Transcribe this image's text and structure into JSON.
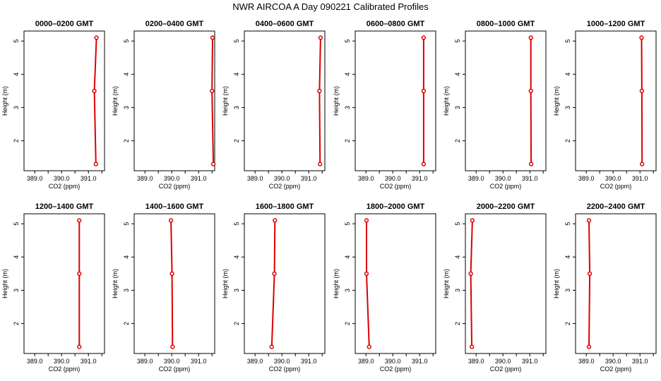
{
  "title": "NWR AIRCOA A  Day 090221  Calibrated Profiles",
  "colors": {
    "series": "#dd0000",
    "axis": "#000000",
    "background": "#ffffff"
  },
  "chart_data": [
    {
      "type": "line",
      "title": "0000–0200 GMT",
      "xlabel": "CO2 (ppm)",
      "ylabel": "Height (m)",
      "xlim": [
        388.6,
        391.6
      ],
      "ylim": [
        1.1,
        5.3
      ],
      "xticks": [
        "389.0",
        "390.0",
        "391.0"
      ],
      "yticks": [
        "2",
        "3",
        "4",
        "5"
      ],
      "points": [
        {
          "x": 391.28,
          "y": 1.3
        },
        {
          "x": 391.22,
          "y": 3.5
        },
        {
          "x": 391.3,
          "y": 5.1
        }
      ]
    },
    {
      "type": "line",
      "title": "0200–0400 GMT",
      "xlabel": "CO2 (ppm)",
      "ylabel": "Height (m)",
      "xlim": [
        388.6,
        391.6
      ],
      "ylim": [
        1.1,
        5.3
      ],
      "xticks": [
        "389.0",
        "390.0",
        "391.0"
      ],
      "yticks": [
        "2",
        "3",
        "4",
        "5"
      ],
      "points": [
        {
          "x": 391.55,
          "y": 1.3
        },
        {
          "x": 391.5,
          "y": 3.5
        },
        {
          "x": 391.52,
          "y": 5.1
        }
      ]
    },
    {
      "type": "line",
      "title": "0400–0600 GMT",
      "xlabel": "CO2 (ppm)",
      "ylabel": "Height (m)",
      "xlim": [
        388.6,
        391.6
      ],
      "ylim": [
        1.1,
        5.3
      ],
      "xticks": [
        "389.0",
        "390.0",
        "391.0"
      ],
      "yticks": [
        "2",
        "3",
        "4",
        "5"
      ],
      "points": [
        {
          "x": 391.42,
          "y": 1.3
        },
        {
          "x": 391.4,
          "y": 3.5
        },
        {
          "x": 391.44,
          "y": 5.1
        }
      ]
    },
    {
      "type": "line",
      "title": "0600–0800 GMT",
      "xlabel": "CO2 (ppm)",
      "ylabel": "Height (m)",
      "xlim": [
        388.6,
        391.6
      ],
      "ylim": [
        1.1,
        5.3
      ],
      "xticks": [
        "389.0",
        "390.0",
        "391.0"
      ],
      "yticks": [
        "2",
        "3",
        "4",
        "5"
      ],
      "points": [
        {
          "x": 391.15,
          "y": 1.3
        },
        {
          "x": 391.15,
          "y": 3.5
        },
        {
          "x": 391.15,
          "y": 5.1
        }
      ]
    },
    {
      "type": "line",
      "title": "0800–1000 GMT",
      "xlabel": "CO2 (ppm)",
      "ylabel": "Height (m)",
      "xlim": [
        388.6,
        391.6
      ],
      "ylim": [
        1.1,
        5.3
      ],
      "xticks": [
        "389.0",
        "390.0",
        "391.0"
      ],
      "yticks": [
        "2",
        "3",
        "4",
        "5"
      ],
      "points": [
        {
          "x": 391.05,
          "y": 1.3
        },
        {
          "x": 391.04,
          "y": 3.5
        },
        {
          "x": 391.04,
          "y": 5.1
        }
      ]
    },
    {
      "type": "line",
      "title": "1000–1200 GMT",
      "xlabel": "CO2 (ppm)",
      "ylabel": "Height (m)",
      "xlim": [
        388.6,
        391.6
      ],
      "ylim": [
        1.1,
        5.3
      ],
      "xticks": [
        "389.0",
        "390.0",
        "391.0"
      ],
      "yticks": [
        "2",
        "3",
        "4",
        "5"
      ],
      "points": [
        {
          "x": 391.08,
          "y": 1.3
        },
        {
          "x": 391.07,
          "y": 3.5
        },
        {
          "x": 391.06,
          "y": 5.1
        }
      ]
    },
    {
      "type": "line",
      "title": "1200–1400 GMT",
      "xlabel": "CO2 (ppm)",
      "ylabel": "Height (m)",
      "xlim": [
        388.6,
        391.6
      ],
      "ylim": [
        1.1,
        5.3
      ],
      "xticks": [
        "389.0",
        "390.0",
        "391.0"
      ],
      "yticks": [
        "2",
        "3",
        "4",
        "5"
      ],
      "points": [
        {
          "x": 390.66,
          "y": 1.3
        },
        {
          "x": 390.66,
          "y": 3.5
        },
        {
          "x": 390.66,
          "y": 5.1
        }
      ]
    },
    {
      "type": "line",
      "title": "1400–1600 GMT",
      "xlabel": "CO2 (ppm)",
      "ylabel": "Height (m)",
      "xlim": [
        388.6,
        391.6
      ],
      "ylim": [
        1.1,
        5.3
      ],
      "xticks": [
        "389.0",
        "390.0",
        "391.0"
      ],
      "yticks": [
        "2",
        "3",
        "4",
        "5"
      ],
      "points": [
        {
          "x": 390.03,
          "y": 1.3
        },
        {
          "x": 390.01,
          "y": 3.5
        },
        {
          "x": 389.97,
          "y": 5.1
        }
      ]
    },
    {
      "type": "line",
      "title": "1600–1800 GMT",
      "xlabel": "CO2 (ppm)",
      "ylabel": "Height (m)",
      "xlim": [
        388.6,
        391.6
      ],
      "ylim": [
        1.1,
        5.3
      ],
      "xticks": [
        "389.0",
        "390.0",
        "391.0"
      ],
      "yticks": [
        "2",
        "3",
        "4",
        "5"
      ],
      "points": [
        {
          "x": 389.62,
          "y": 1.3
        },
        {
          "x": 389.72,
          "y": 3.5
        },
        {
          "x": 389.74,
          "y": 5.1
        }
      ]
    },
    {
      "type": "line",
      "title": "1800–2000 GMT",
      "xlabel": "CO2 (ppm)",
      "ylabel": "Height (m)",
      "xlim": [
        388.6,
        391.6
      ],
      "ylim": [
        1.1,
        5.3
      ],
      "xticks": [
        "389.0",
        "390.0",
        "391.0"
      ],
      "yticks": [
        "2",
        "3",
        "4",
        "5"
      ],
      "points": [
        {
          "x": 389.12,
          "y": 1.3
        },
        {
          "x": 389.02,
          "y": 3.5
        },
        {
          "x": 389.02,
          "y": 5.1
        }
      ]
    },
    {
      "type": "line",
      "title": "2000–2200 GMT",
      "xlabel": "CO2 (ppm)",
      "ylabel": "Height (m)",
      "xlim": [
        388.6,
        391.6
      ],
      "ylim": [
        1.1,
        5.3
      ],
      "xticks": [
        "389.0",
        "390.0",
        "391.0"
      ],
      "yticks": [
        "2",
        "3",
        "4",
        "5"
      ],
      "points": [
        {
          "x": 388.84,
          "y": 1.3
        },
        {
          "x": 388.8,
          "y": 3.5
        },
        {
          "x": 388.86,
          "y": 5.1
        }
      ]
    },
    {
      "type": "line",
      "title": "2200–2400 GMT",
      "xlabel": "CO2 (ppm)",
      "ylabel": "Height (m)",
      "xlim": [
        388.6,
        391.6
      ],
      "ylim": [
        1.1,
        5.3
      ],
      "xticks": [
        "389.0",
        "390.0",
        "391.0"
      ],
      "yticks": [
        "2",
        "3",
        "4",
        "5"
      ],
      "points": [
        {
          "x": 389.1,
          "y": 1.3
        },
        {
          "x": 389.13,
          "y": 3.5
        },
        {
          "x": 389.1,
          "y": 5.1
        }
      ]
    }
  ]
}
